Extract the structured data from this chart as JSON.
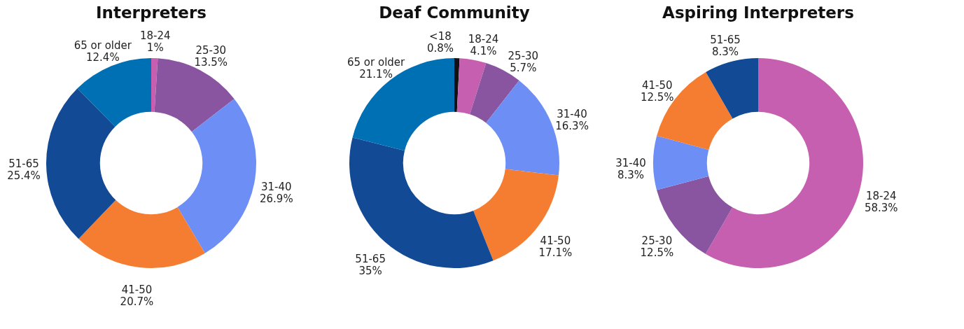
{
  "chart_data": [
    {
      "type": "donut",
      "title": "Interpreters",
      "categories": [
        "18-24",
        "25-30",
        "31-40",
        "41-50",
        "51-65",
        "65 or older"
      ],
      "values": [
        1,
        13.5,
        26.9,
        20.7,
        25.4,
        12.4
      ],
      "value_labels": [
        "1%",
        "13.5%",
        "26.9%",
        "20.7%",
        "25.4%",
        "12.4%"
      ],
      "colors": [
        "#c65fb0",
        "#8a55a0",
        "#6d8ff5",
        "#f47d32",
        "#124a96",
        "#0070b5"
      ],
      "legend": false
    },
    {
      "type": "donut",
      "title": "Deaf Community",
      "categories": [
        "<18",
        "18-24",
        "25-30",
        "31-40",
        "41-50",
        "51-65",
        "65 or older"
      ],
      "values": [
        0.8,
        4.1,
        5.7,
        16.3,
        17.1,
        35,
        21.1
      ],
      "value_labels": [
        "0.8%",
        "4.1%",
        "5.7%",
        "16.3%",
        "17.1%",
        "35%",
        "21.1%"
      ],
      "colors": [
        "#111111",
        "#c65fb0",
        "#8a55a0",
        "#6d8ff5",
        "#f47d32",
        "#124a96",
        "#0070b5"
      ],
      "legend": false
    },
    {
      "type": "donut",
      "title": "Aspiring Interpreters",
      "categories": [
        "18-24",
        "25-30",
        "31-40",
        "41-50",
        "51-65"
      ],
      "values": [
        58.3,
        12.5,
        8.3,
        12.5,
        8.3
      ],
      "value_labels": [
        "58.3%",
        "12.5%",
        "8.3%",
        "12.5%",
        "8.3%"
      ],
      "colors": [
        "#c65fb0",
        "#8a55a0",
        "#6d8ff5",
        "#f47d32",
        "#124a96"
      ],
      "legend": false
    }
  ]
}
